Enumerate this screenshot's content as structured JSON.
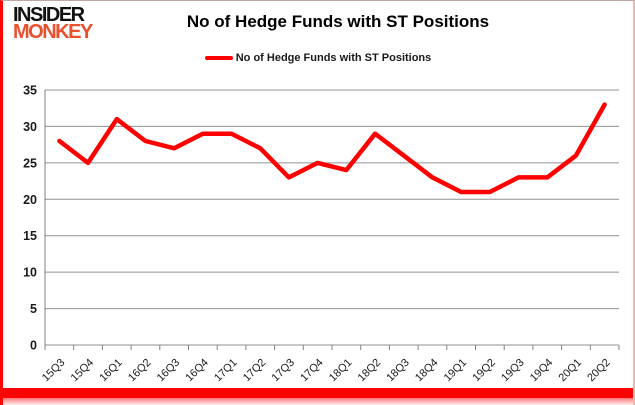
{
  "header": {
    "logo_line1": "INSIDER",
    "logo_line2": "MONKEY",
    "title": "No of Hedge Funds with ST Positions"
  },
  "legend": {
    "label": "No of Hedge Funds with ST Positions"
  },
  "colors": {
    "line": "#ff0000",
    "logo_accent": "#e8502e",
    "grid": "#909090",
    "axis": "#808080",
    "tick_label": "#1a1a1a",
    "accent_bar": "#fa0505"
  },
  "chart_data": {
    "type": "line",
    "title": "No of Hedge Funds with ST Positions",
    "categories": [
      "15Q3",
      "15Q4",
      "16Q1",
      "16Q2",
      "16Q3",
      "16Q4",
      "17Q1",
      "17Q2",
      "17Q3",
      "17Q4",
      "18Q1",
      "18Q2",
      "18Q3",
      "18Q4",
      "19Q1",
      "19Q2",
      "19Q3",
      "19Q4",
      "20Q1",
      "20Q2"
    ],
    "series": [
      {
        "name": "No of Hedge Funds with ST Positions",
        "color": "#ff0000",
        "values": [
          28,
          25,
          31,
          28,
          27,
          29,
          29,
          27,
          23,
          25,
          24,
          29,
          26,
          23,
          21,
          21,
          23,
          23,
          26,
          33
        ]
      }
    ],
    "xlabel": "",
    "ylabel": "",
    "ylim": [
      0,
      35
    ],
    "ytick_step": 5,
    "grid": true,
    "legend_position": "top-center"
  }
}
